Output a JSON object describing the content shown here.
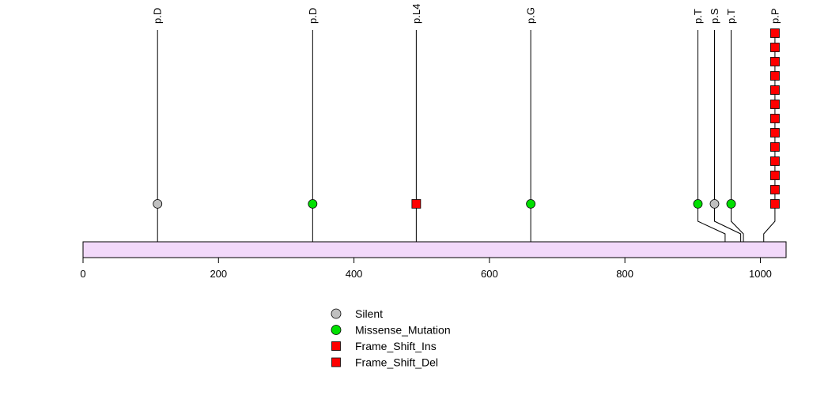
{
  "chart_data": {
    "type": "lollipop",
    "x_axis": {
      "range": [
        0,
        1038
      ],
      "ticks": [
        0,
        200,
        400,
        600,
        800,
        1000
      ],
      "tick_labels": [
        "0",
        "200",
        "400",
        "600",
        "800",
        "1000"
      ]
    },
    "protein_length": 1038,
    "colors": {
      "protein_bar": "#f2d9fa",
      "silent": "#c0c0c0",
      "missense": "#00e000",
      "frame_shift": "#ff0000",
      "line": "#000000"
    },
    "mutations": [
      {
        "position": 110,
        "label": "p.D",
        "type": "Silent",
        "count": 1
      },
      {
        "position": 339,
        "label": "p.D",
        "type": "Missense_Mutation",
        "count": 1
      },
      {
        "position": 492,
        "label": "p.L4",
        "type": "Frame_Shift_Del",
        "count": 1
      },
      {
        "position": 661,
        "label": "p.G",
        "type": "Missense_Mutation",
        "count": 1
      },
      {
        "position": 948,
        "label": "p.T",
        "type": "Missense_Mutation",
        "count": 1
      },
      {
        "position": 971,
        "label": "p.S",
        "type": "Silent",
        "count": 1
      },
      {
        "position": 975,
        "label": "p.T",
        "type": "Missense_Mutation",
        "count": 1
      },
      {
        "position": 1005,
        "label": "p.P",
        "type": "Frame_Shift_Del",
        "count": 13
      }
    ],
    "legend": [
      {
        "label": "Silent",
        "shape": "circle",
        "color": "#c0c0c0"
      },
      {
        "label": "Missense_Mutation",
        "shape": "circle",
        "color": "#00e000"
      },
      {
        "label": "Frame_Shift_Ins",
        "shape": "square",
        "color": "#ff0000"
      },
      {
        "label": "Frame_Shift_Del",
        "shape": "square",
        "color": "#ff0000"
      }
    ]
  }
}
